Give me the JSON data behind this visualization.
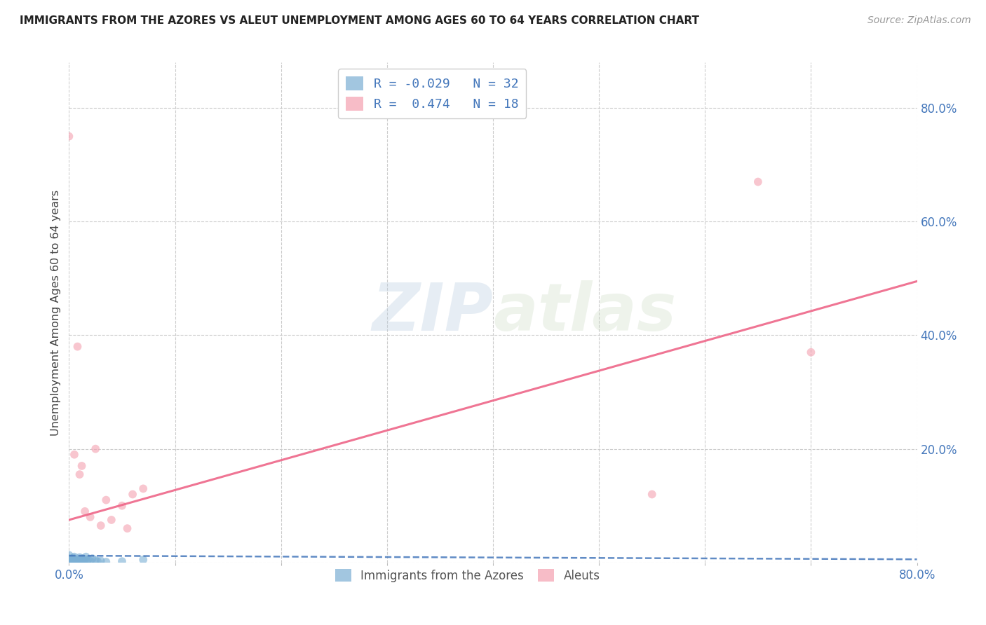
{
  "title": "IMMIGRANTS FROM THE AZORES VS ALEUT UNEMPLOYMENT AMONG AGES 60 TO 64 YEARS CORRELATION CHART",
  "source": "Source: ZipAtlas.com",
  "ylabel": "Unemployment Among Ages 60 to 64 years",
  "xlim": [
    0.0,
    0.8
  ],
  "ylim": [
    0.0,
    0.88
  ],
  "x_ticks": [
    0.0,
    0.1,
    0.2,
    0.3,
    0.4,
    0.5,
    0.6,
    0.7,
    0.8
  ],
  "x_tick_labels": [
    "0.0%",
    "",
    "",
    "",
    "",
    "",
    "",
    "",
    "80.0%"
  ],
  "y_ticks_right": [
    0.0,
    0.2,
    0.4,
    0.6,
    0.8
  ],
  "y_tick_labels_right": [
    "",
    "20.0%",
    "40.0%",
    "60.0%",
    "80.0%"
  ],
  "grid_color": "#cccccc",
  "background_color": "#ffffff",
  "watermark_zip": "ZIP",
  "watermark_atlas": "atlas",
  "blue_color": "#7bafd4",
  "pink_color": "#f4a0b0",
  "blue_line_color": "#4477bb",
  "pink_line_color": "#ee6688",
  "blue_scatter_x": [
    0.0,
    0.0,
    0.0,
    0.0,
    0.003,
    0.003,
    0.004,
    0.005,
    0.005,
    0.005,
    0.006,
    0.007,
    0.008,
    0.009,
    0.01,
    0.01,
    0.011,
    0.012,
    0.013,
    0.014,
    0.015,
    0.016,
    0.017,
    0.018,
    0.02,
    0.022,
    0.025,
    0.027,
    0.03,
    0.035,
    0.05,
    0.07
  ],
  "blue_scatter_y": [
    0.0,
    0.003,
    0.007,
    0.013,
    0.0,
    0.004,
    0.008,
    0.002,
    0.006,
    0.01,
    0.003,
    0.001,
    0.0,
    0.005,
    0.003,
    0.009,
    0.001,
    0.004,
    0.007,
    0.003,
    0.006,
    0.01,
    0.002,
    0.005,
    0.003,
    0.007,
    0.004,
    0.002,
    0.003,
    0.001,
    0.002,
    0.005
  ],
  "pink_scatter_x": [
    0.0,
    0.005,
    0.008,
    0.01,
    0.012,
    0.015,
    0.02,
    0.025,
    0.03,
    0.035,
    0.04,
    0.05,
    0.055,
    0.06,
    0.07,
    0.55,
    0.65,
    0.7
  ],
  "pink_scatter_y": [
    0.75,
    0.19,
    0.38,
    0.155,
    0.17,
    0.09,
    0.08,
    0.2,
    0.065,
    0.11,
    0.075,
    0.1,
    0.06,
    0.12,
    0.13,
    0.12,
    0.67,
    0.37
  ],
  "blue_line_y_intercept": 0.012,
  "blue_line_slope": -0.008,
  "pink_line_y_intercept": 0.075,
  "pink_line_slope": 0.525,
  "legend_label_blue": "Immigrants from the Azores",
  "legend_label_pink": "Aleuts",
  "legend_r1": "R = -0.029",
  "legend_n1": "N = 32",
  "legend_r2": "R =  0.474",
  "legend_n2": "N = 18",
  "marker_size": 72
}
